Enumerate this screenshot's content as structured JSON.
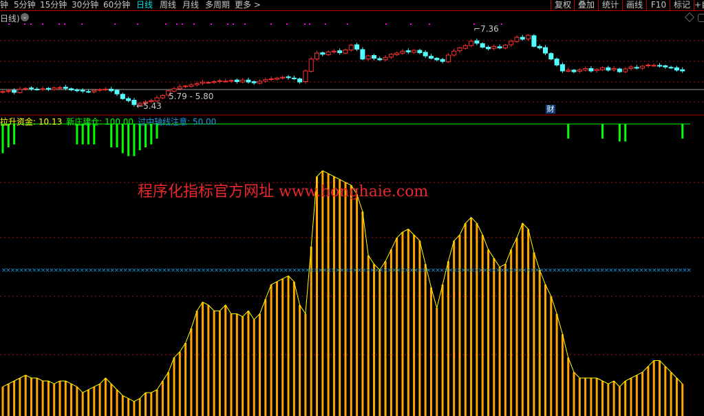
{
  "toolbar": {
    "periods": [
      {
        "label": "钟",
        "active": false
      },
      {
        "label": "5分钟",
        "active": false
      },
      {
        "label": "15分钟",
        "active": false
      },
      {
        "label": "30分钟",
        "active": false
      },
      {
        "label": "60分钟",
        "active": false
      },
      {
        "label": "日线",
        "active": true
      },
      {
        "label": "周线",
        "active": false
      },
      {
        "label": "月线",
        "active": false
      },
      {
        "label": "多周期",
        "active": false
      },
      {
        "label": "更多 >",
        "active": false
      }
    ],
    "right_buttons": [
      "复权",
      "叠加",
      "统计",
      "画线",
      "F10",
      "标记",
      "+自"
    ]
  },
  "price_panel": {
    "period_label": "日线)",
    "high_label": "7.36",
    "low_label": "5.43",
    "range_label": "5.79 - 5.80",
    "finance_badge": "财",
    "colors": {
      "up": "#ff3232",
      "down": "#54ffff",
      "grid": "#a01010",
      "ref_line": "#a0a0a0",
      "marker": "#ff00ff"
    },
    "closes": [
      5.78,
      5.8,
      5.76,
      5.84,
      5.86,
      5.85,
      5.83,
      5.85,
      5.84,
      5.87,
      5.88,
      5.86,
      5.82,
      5.8,
      5.79,
      5.77,
      5.81,
      5.83,
      5.84,
      5.8,
      5.72,
      5.6,
      5.55,
      5.45,
      5.48,
      5.52,
      5.55,
      5.62,
      5.68,
      5.8,
      5.85,
      5.9,
      5.92,
      5.95,
      5.98,
      6.02,
      6.01,
      6.03,
      6.05,
      6.04,
      6.06,
      6.03,
      6.07,
      6.02,
      6.0,
      6.04,
      6.08,
      6.1,
      6.12,
      6.14,
      6.13,
      6.1,
      6.02,
      6.3,
      6.6,
      6.75,
      6.72,
      6.78,
      6.8,
      6.76,
      6.83,
      6.95,
      6.85,
      6.6,
      6.68,
      6.62,
      6.58,
      6.64,
      6.72,
      6.75,
      6.8,
      6.78,
      6.82,
      6.76,
      6.68,
      6.62,
      6.58,
      6.54,
      6.7,
      6.8,
      6.88,
      6.94,
      7.05,
      7.0,
      6.9,
      6.86,
      6.92,
      6.88,
      6.95,
      7.05,
      7.15,
      7.1,
      7.2,
      6.92,
      6.88,
      6.75,
      6.6,
      6.45,
      6.3,
      6.32,
      6.28,
      6.33,
      6.36,
      6.3,
      6.34,
      6.38,
      6.32,
      6.36,
      6.28,
      6.35,
      6.4,
      6.37,
      6.42,
      6.45,
      6.44,
      6.42,
      6.4,
      6.38,
      6.32,
      6.3
    ]
  },
  "indicator": {
    "legend": [
      {
        "name": "拉升资金",
        "value": "10.13",
        "color": "#ffff00"
      },
      {
        "name": "新庄建仓",
        "value": "100.00",
        "color": "#00ff00"
      },
      {
        "name": "过中轴线注意",
        "value": "50.00",
        "color": "#1e9be0"
      }
    ],
    "watermark": "程序化指标官方网址 www.honghaie.com",
    "colors": {
      "bars": "#ffa500",
      "outline": "#ffff00",
      "green": "#00ff00",
      "axis_marks": "#1e9be0"
    },
    "axis_level": 50,
    "lift_funds": [
      10,
      11,
      12,
      13,
      14,
      13,
      13,
      12,
      12,
      11,
      12,
      12,
      11,
      10,
      8,
      9,
      10,
      11,
      13,
      11,
      9,
      7,
      6,
      5,
      6,
      8,
      8,
      9,
      12,
      15,
      20,
      22,
      25,
      30,
      36,
      39,
      38,
      36,
      36,
      38,
      35,
      35,
      34,
      36,
      33,
      35,
      40,
      45,
      46,
      47,
      48,
      46,
      38,
      35,
      58,
      82,
      84,
      83,
      82,
      81,
      80,
      79,
      76,
      70,
      55,
      52,
      50,
      53,
      57,
      61,
      63,
      64,
      62,
      60,
      52,
      44,
      37,
      45,
      53,
      60,
      62,
      66,
      68,
      66,
      62,
      57,
      54,
      51,
      52,
      57,
      61,
      66,
      64,
      56,
      50,
      45,
      41,
      35,
      28,
      20,
      15,
      13,
      13,
      13,
      13,
      12,
      11,
      12,
      10,
      12,
      13,
      14,
      15,
      17,
      19,
      19,
      17,
      15,
      13,
      11
    ],
    "accumulation": [
      [
        0,
        90
      ],
      [
        1,
        92
      ],
      [
        2,
        93
      ],
      [
        13,
        93
      ],
      [
        14,
        93
      ],
      [
        15,
        93
      ],
      [
        16,
        93
      ],
      [
        19,
        92
      ],
      [
        20,
        92
      ],
      [
        21,
        90
      ],
      [
        22,
        89
      ],
      [
        23,
        89
      ],
      [
        24,
        91
      ],
      [
        25,
        92
      ],
      [
        26,
        93
      ],
      [
        27,
        95
      ],
      [
        99,
        95
      ],
      [
        105,
        95
      ],
      [
        108,
        94
      ],
      [
        109,
        94
      ],
      [
        119,
        95
      ]
    ]
  }
}
